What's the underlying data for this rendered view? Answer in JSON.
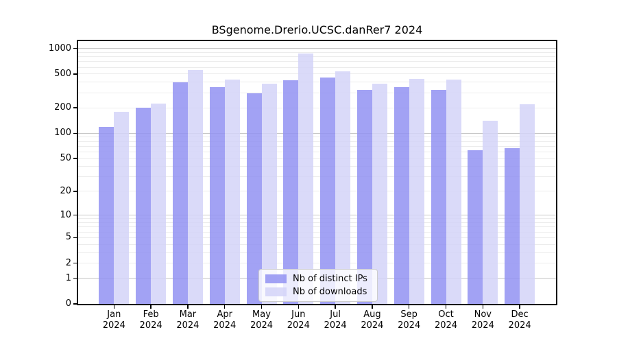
{
  "figure": {
    "title": "BSgenome.Drerio.UCSC.danRer7 2024"
  },
  "legend": {
    "items": [
      {
        "label": "Nb of distinct IPs",
        "color": "#9292f2"
      },
      {
        "label": "Nb of downloads",
        "color": "#d4d4f8"
      }
    ]
  },
  "chart_data": {
    "type": "bar",
    "title": "BSgenome.Drerio.UCSC.danRer7 2024",
    "categories": [
      "Jan 2024",
      "Feb 2024",
      "Mar 2024",
      "Apr 2024",
      "May 2024",
      "Jun 2024",
      "Jul 2024",
      "Aug 2024",
      "Sep 2024",
      "Oct 2024",
      "Nov 2024",
      "Dec 2024"
    ],
    "series": [
      {
        "name": "Nb of distinct IPs",
        "color": "#9292f2",
        "values": [
          120,
          202,
          400,
          348,
          295,
          420,
          455,
          327,
          352,
          327,
          63,
          66
        ]
      },
      {
        "name": "Nb of downloads",
        "color": "#d4d4f8",
        "values": [
          180,
          225,
          560,
          427,
          382,
          880,
          535,
          386,
          440,
          429,
          141,
          220
        ]
      }
    ],
    "yscale": "log1p",
    "ylim": [
      0,
      1180
    ],
    "yticks": [
      1000,
      500,
      200,
      100,
      50,
      20,
      10,
      5,
      2,
      1,
      0
    ],
    "xlabel": "",
    "ylabel": "",
    "grid": true,
    "legend_position": "lower center"
  },
  "colors": {
    "bar_distinct_ips": "#9292f2",
    "bar_downloads": "#d4d4f8",
    "grid_major": "#c6c6c6",
    "grid_minor": "#ececec",
    "axis": "#000000",
    "background": "#ffffff",
    "legend_border": "#cccccc"
  }
}
